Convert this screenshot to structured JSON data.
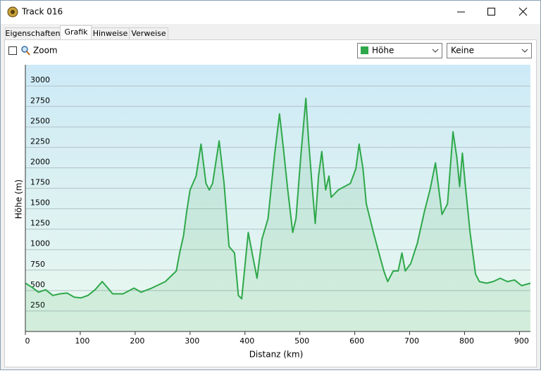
{
  "window": {
    "title": "Track 016"
  },
  "tabs": [
    "Eigenschaften",
    "Grafik",
    "Hinweise",
    "Verweise"
  ],
  "toolbar": {
    "zoom_label": "Zoom",
    "second_select": "Keine"
  },
  "chart_data": {
    "type": "line",
    "x_label": "Distanz (km)",
    "y_label": "Höhe (m)",
    "xlim": [
      0,
      920
    ],
    "xticks": [
      0,
      100,
      200,
      300,
      400,
      500,
      600,
      700,
      800,
      900
    ],
    "ylim": [
      0,
      3260
    ],
    "yticks": [
      250,
      500,
      750,
      1000,
      1250,
      1500,
      1750,
      2000,
      2250,
      2500,
      2750,
      3000
    ],
    "grid": true,
    "x": [
      0,
      12,
      24,
      37,
      50,
      63,
      76,
      89,
      101,
      114,
      127,
      140,
      149,
      159,
      178,
      198,
      211,
      230,
      255,
      275,
      281,
      288,
      294,
      300,
      311,
      320,
      329,
      335,
      341,
      353,
      362,
      371,
      381,
      388,
      394,
      401,
      406,
      413,
      422,
      431,
      442,
      454,
      463,
      470,
      478,
      487,
      493,
      502,
      511,
      516,
      522,
      528,
      534,
      540,
      547,
      553,
      557,
      570,
      592,
      602,
      608,
      615,
      621,
      634,
      644,
      653,
      660,
      670,
      679,
      686,
      692,
      702,
      714,
      727,
      737,
      747,
      759,
      769,
      779,
      786,
      791,
      796,
      801,
      810,
      820,
      827,
      840,
      852,
      865,
      878,
      891,
      904,
      920
    ],
    "series": [
      {
        "name": "Höhe",
        "color": "#2ea84a",
        "values": [
          590,
          540,
          480,
          510,
          440,
          460,
          470,
          420,
          410,
          440,
          510,
          610,
          540,
          460,
          460,
          530,
          480,
          530,
          610,
          740,
          960,
          1170,
          1470,
          1730,
          1900,
          2290,
          1810,
          1730,
          1810,
          2330,
          1810,
          1040,
          960,
          440,
          400,
          870,
          1210,
          960,
          650,
          1130,
          1380,
          2160,
          2660,
          2240,
          1730,
          1210,
          1380,
          2160,
          2850,
          2330,
          1810,
          1320,
          1900,
          2200,
          1730,
          1900,
          1640,
          1730,
          1810,
          1990,
          2290,
          1990,
          1560,
          1210,
          960,
          740,
          610,
          740,
          740,
          960,
          740,
          830,
          1080,
          1470,
          1730,
          2060,
          1430,
          1560,
          2440,
          2120,
          1770,
          2180,
          1810,
          1210,
          700,
          610,
          590,
          610,
          650,
          610,
          630,
          560,
          590
        ]
      }
    ]
  }
}
